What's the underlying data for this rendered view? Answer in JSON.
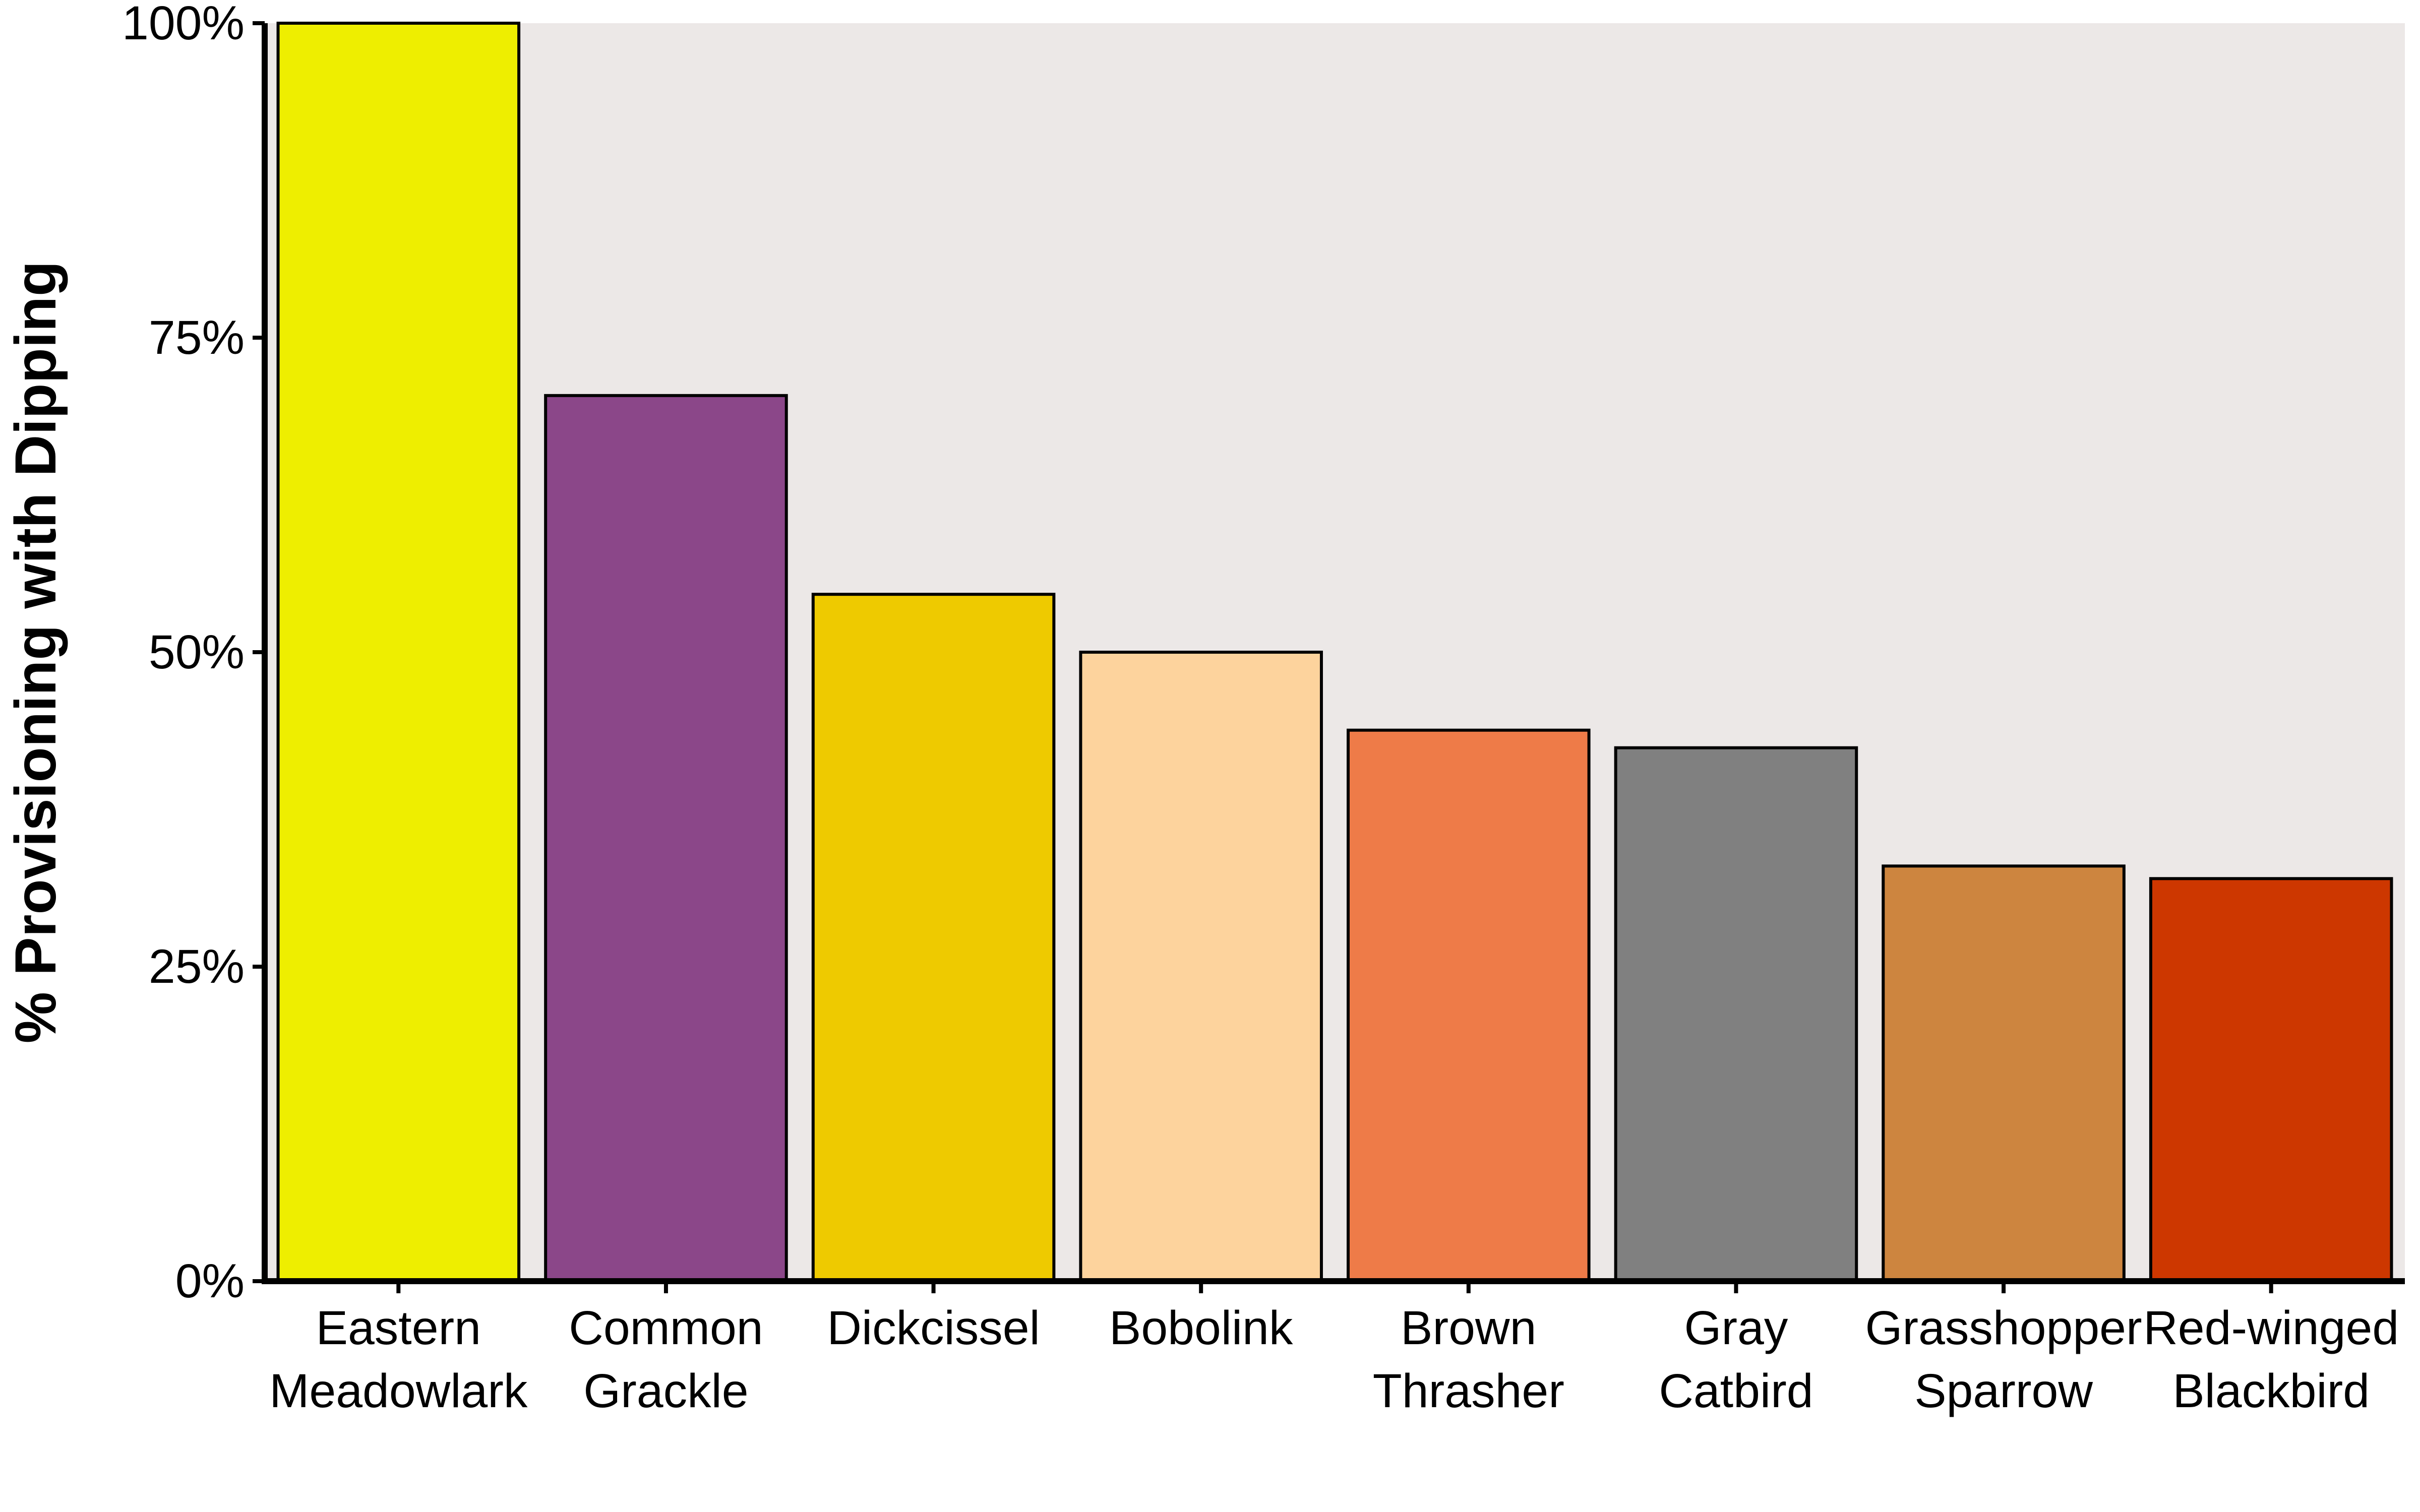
{
  "chart_data": {
    "type": "bar",
    "title": "",
    "xlabel": "",
    "ylabel": "% Provisioning with Dipping",
    "ylim": [
      0,
      100
    ],
    "yticks": [
      0,
      25,
      50,
      75,
      100
    ],
    "ytick_labels": [
      "0%",
      "25%",
      "50%",
      "75%",
      "100%"
    ],
    "grid": false,
    "legend": "none",
    "panel_background": "#ECE8E7",
    "categories": [
      [
        "Eastern",
        "Meadowlark"
      ],
      [
        "Common",
        "Grackle"
      ],
      [
        "Dickcissel"
      ],
      [
        "Bobolink"
      ],
      [
        "Brown",
        "Thrasher"
      ],
      [
        "Gray",
        "Catbird"
      ],
      [
        "Grasshopper",
        "Sparrow"
      ],
      [
        "Red-winged",
        "Blackbird"
      ]
    ],
    "values": [
      100,
      70.4,
      54.6,
      50.0,
      43.8,
      42.4,
      33.0,
      32.0
    ],
    "colors": [
      "#EEEE00",
      "#8B4789",
      "#EECA00",
      "#FDD39D",
      "#EE7B48",
      "#808080",
      "#CD853F",
      "#CD3700"
    ]
  }
}
